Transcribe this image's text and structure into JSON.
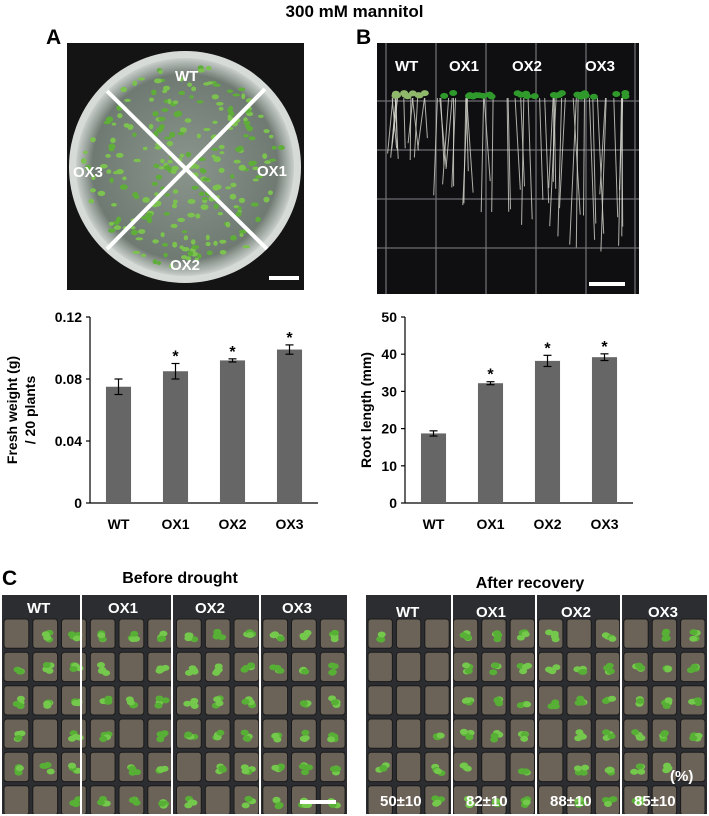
{
  "figure": {
    "title": "300 mM mannitol",
    "panels": {
      "A": {
        "label": "A",
        "plate_labels": [
          "WT",
          "OX1",
          "OX2",
          "OX3"
        ]
      },
      "B": {
        "label": "B",
        "lane_labels": [
          "WT",
          "OX1",
          "OX2",
          "OX3"
        ]
      },
      "C": {
        "label": "C",
        "before": {
          "title": "Before drought",
          "tray_labels": [
            "WT",
            "OX1",
            "OX2",
            "OX3"
          ]
        },
        "after": {
          "title": "After recovery",
          "tray_labels": [
            "WT",
            "OX1",
            "OX2",
            "OX3"
          ],
          "unit": "(%)",
          "survival": [
            "50±10",
            "82±10",
            "88±10",
            "85±10"
          ]
        }
      }
    }
  },
  "chart_data": [
    {
      "type": "bar",
      "panel": "A",
      "categories": [
        "WT",
        "OX1",
        "OX2",
        "OX3"
      ],
      "values": [
        0.075,
        0.085,
        0.092,
        0.099
      ],
      "errors": [
        0.005,
        0.005,
        0.001,
        0.003
      ],
      "significant": [
        false,
        true,
        true,
        true
      ],
      "ylabel_lines": [
        "Fresh weight (g)",
        "/ 20 plants"
      ],
      "ylim": [
        0,
        0.12
      ],
      "yticks": [
        "0",
        "0.04",
        "0.08",
        "0.12"
      ],
      "ytick_values": [
        0,
        0.04,
        0.08,
        0.12
      ],
      "bar_color": "#666666"
    },
    {
      "type": "bar",
      "panel": "B",
      "categories": [
        "WT",
        "OX1",
        "OX2",
        "OX3"
      ],
      "values": [
        18.7,
        32.2,
        38.2,
        39.2
      ],
      "errors": [
        0.7,
        0.4,
        1.5,
        0.9
      ],
      "significant": [
        false,
        true,
        true,
        true
      ],
      "ylabel_lines": [
        "Root length (mm)"
      ],
      "ylim": [
        0,
        50
      ],
      "yticks": [
        "0",
        "10",
        "20",
        "30",
        "40",
        "50"
      ],
      "ytick_values": [
        0,
        10,
        20,
        30,
        40,
        50
      ],
      "bar_color": "#666666"
    }
  ]
}
